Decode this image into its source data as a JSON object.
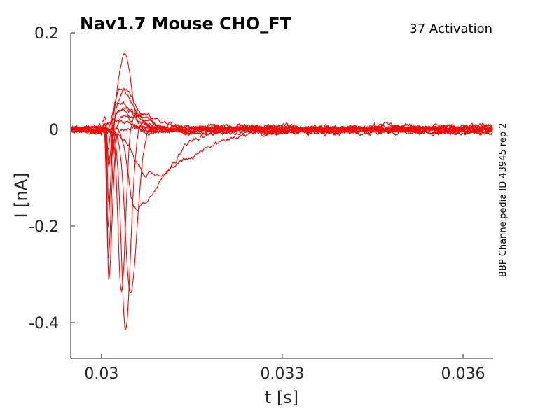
{
  "chart_data": {
    "type": "line",
    "title": "Nav1.7  Mouse  CHO_FT",
    "subtitle": "37  Activation",
    "side_note": "BBP Channelpedia ID 43945 rep 2",
    "xlabel": "t [s]",
    "ylabel": "I [nA]",
    "xlim": [
      0.02949,
      0.0365
    ],
    "ylim": [
      -0.474,
      0.2
    ],
    "xticks": [
      0.03,
      0.033,
      0.036
    ],
    "xtick_labels": [
      "0.03",
      "0.033",
      "0.036"
    ],
    "yticks": [
      0.2,
      0,
      -0.2,
      -0.4
    ],
    "ytick_labels": [
      "0.2",
      "0",
      "-0.2",
      "-0.4"
    ],
    "grid": false,
    "color": "#ff0000",
    "step_onset_s": 0.03,
    "trace_model": "I(t) = -peak_nA * asymmetric_gaussian(t_peak_ms, rise_ms, decay_ms) + overshoot_nA * gaussian(overshoot_t_ms, overshoot_w_ms) + noise; times in ms after step onset",
    "series": [
      {
        "peak_nA": 0.313,
        "t_peak_ms": 0.12,
        "rise_ms": 0.03,
        "decay_ms": 0.08,
        "overshoot_nA": 0.0,
        "overshoot_t_ms": 0.4,
        "overshoot_w_ms": 0.2
      },
      {
        "peak_nA": 0.27,
        "t_peak_ms": 0.11,
        "rise_ms": 0.03,
        "decay_ms": 0.07,
        "overshoot_nA": 0.02,
        "overshoot_t_ms": 0.35,
        "overshoot_w_ms": 0.2
      },
      {
        "peak_nA": 0.22,
        "t_peak_ms": 0.1,
        "rise_ms": 0.03,
        "decay_ms": 0.07,
        "overshoot_nA": 0.04,
        "overshoot_t_ms": 0.3,
        "overshoot_w_ms": 0.2
      },
      {
        "peak_nA": 0.17,
        "t_peak_ms": 0.12,
        "rise_ms": 0.03,
        "decay_ms": 0.07,
        "overshoot_nA": 0.06,
        "overshoot_t_ms": 0.35,
        "overshoot_w_ms": 0.25
      },
      {
        "peak_nA": 0.12,
        "t_peak_ms": 0.12,
        "rise_ms": 0.03,
        "decay_ms": 0.07,
        "overshoot_nA": 0.08,
        "overshoot_t_ms": 0.33,
        "overshoot_w_ms": 0.25
      },
      {
        "peak_nA": 0.08,
        "t_peak_ms": 0.12,
        "rise_ms": 0.03,
        "decay_ms": 0.07,
        "overshoot_nA": 0.05,
        "overshoot_t_ms": 0.4,
        "overshoot_w_ms": 0.3
      },
      {
        "peak_nA": 0.35,
        "t_peak_ms": 0.33,
        "rise_ms": 0.08,
        "decay_ms": 0.1,
        "overshoot_nA": 0.03,
        "overshoot_t_ms": 0.6,
        "overshoot_w_ms": 0.3
      },
      {
        "peak_nA": 0.417,
        "t_peak_ms": 0.4,
        "rise_ms": 0.1,
        "decay_ms": 0.12,
        "overshoot_nA": 0.02,
        "overshoot_t_ms": 0.75,
        "overshoot_w_ms": 0.3
      },
      {
        "peak_nA": 0.34,
        "t_peak_ms": 0.48,
        "rise_ms": 0.12,
        "decay_ms": 0.16,
        "overshoot_nA": 0.01,
        "overshoot_t_ms": 0.9,
        "overshoot_w_ms": 0.3
      },
      {
        "peak_nA": 0.16,
        "t_peak_ms": 0.55,
        "rise_ms": 0.15,
        "decay_ms": 0.7,
        "overshoot_nA": 0.0,
        "overshoot_t_ms": 1.0,
        "overshoot_w_ms": 0.3
      },
      {
        "peak_nA": 0.09,
        "t_peak_ms": 0.75,
        "rise_ms": 0.3,
        "decay_ms": 1.1,
        "overshoot_nA": 0.0,
        "overshoot_t_ms": 1.0,
        "overshoot_w_ms": 0.3
      },
      {
        "peak_nA": 0.05,
        "t_peak_ms": 0.1,
        "rise_ms": 0.03,
        "decay_ms": 0.06,
        "overshoot_nA": 0.15,
        "overshoot_t_ms": 0.38,
        "overshoot_w_ms": 0.15
      },
      {
        "peak_nA": 0.03,
        "t_peak_ms": 0.1,
        "rise_ms": 0.03,
        "decay_ms": 0.06,
        "overshoot_nA": 0.085,
        "overshoot_t_ms": 0.42,
        "overshoot_w_ms": 0.25
      },
      {
        "peak_nA": 0.0,
        "t_peak_ms": 0.1,
        "rise_ms": 0.03,
        "decay_ms": 0.06,
        "overshoot_nA": 0.03,
        "overshoot_t_ms": 0.5,
        "overshoot_w_ms": 0.5
      }
    ]
  }
}
